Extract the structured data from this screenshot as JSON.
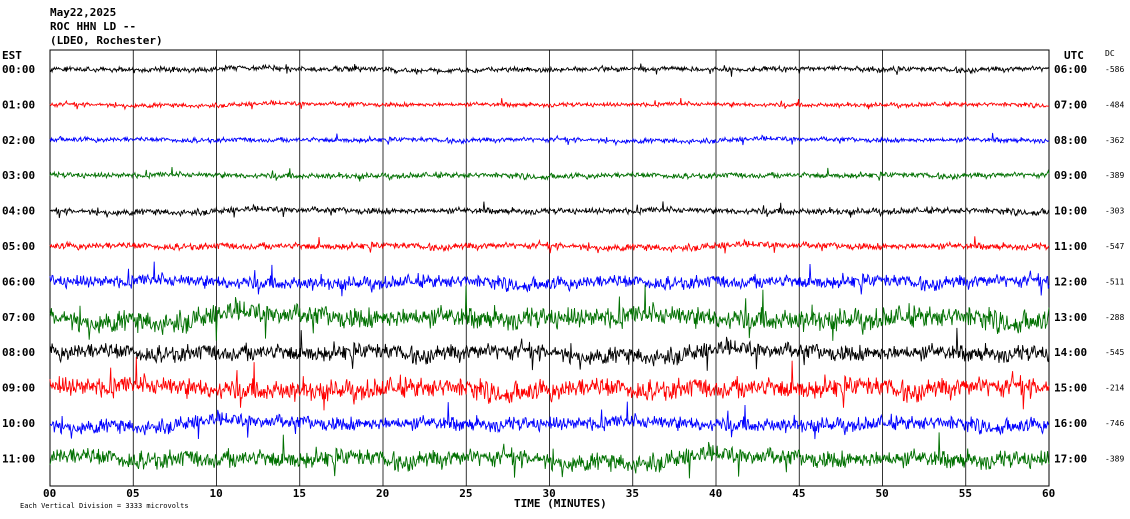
{
  "header": {
    "date": "May22,2025",
    "station": "ROC HHN LD --",
    "location": "(LDEO, Rochester)"
  },
  "chart_data": {
    "type": "line",
    "title": "May22,2025",
    "xlabel": "TIME (MINUTES)",
    "ylabel_left": "EST",
    "ylabel_right": "UTC",
    "dc_label": "DC",
    "xlim": [
      0,
      60
    ],
    "x_ticks": [
      "00",
      "05",
      "10",
      "15",
      "20",
      "25",
      "30",
      "35",
      "40",
      "45",
      "50",
      "55",
      "60"
    ],
    "grid": "vertical",
    "scale_note": "Each Vertical Division = 3333 microvolts",
    "trace_colors": [
      "#000000",
      "#ff0000",
      "#0000ff",
      "#007000"
    ],
    "rows": [
      {
        "est": "00:00",
        "utc": "06:00",
        "dc": "-586",
        "noise": 2.2
      },
      {
        "est": "01:00",
        "utc": "07:00",
        "dc": "-484",
        "noise": 1.8
      },
      {
        "est": "02:00",
        "utc": "08:00",
        "dc": "-362",
        "noise": 2.0
      },
      {
        "est": "03:00",
        "utc": "09:00",
        "dc": "-389",
        "noise": 2.3
      },
      {
        "est": "04:00",
        "utc": "10:00",
        "dc": "-303",
        "noise": 2.6
      },
      {
        "est": "05:00",
        "utc": "11:00",
        "dc": "-547",
        "noise": 2.8
      },
      {
        "est": "06:00",
        "utc": "12:00",
        "dc": "-511",
        "noise": 5.5
      },
      {
        "est": "07:00",
        "utc": "13:00",
        "dc": "-288",
        "noise": 9.0
      },
      {
        "est": "08:00",
        "utc": "14:00",
        "dc": "-545",
        "noise": 7.0
      },
      {
        "est": "09:00",
        "utc": "15:00",
        "dc": "-214",
        "noise": 8.5
      },
      {
        "est": "10:00",
        "utc": "16:00",
        "dc": "-746",
        "noise": 6.0
      },
      {
        "est": "11:00",
        "utc": "17:00",
        "dc": "-389",
        "noise": 7.5
      }
    ]
  }
}
